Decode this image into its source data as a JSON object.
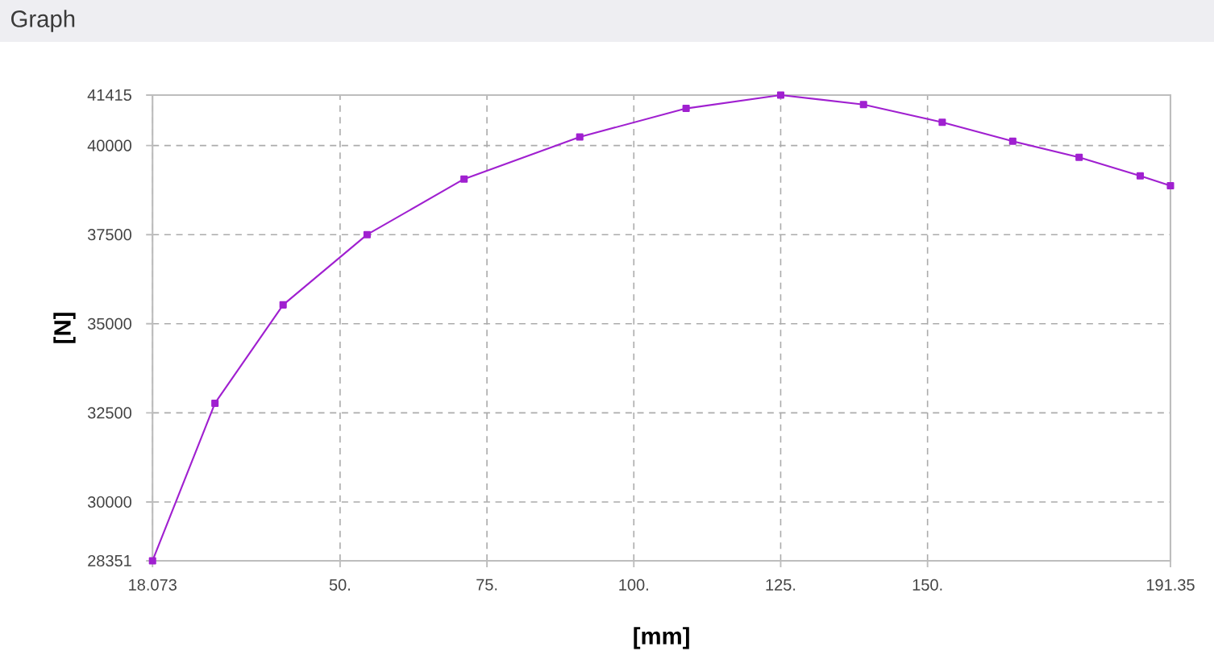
{
  "chart_data": {
    "type": "line",
    "title": "Graph",
    "xlabel": "[mm]",
    "ylabel": "[N]",
    "x": [
      18.073,
      28.7,
      40.3,
      54.6,
      71.1,
      90.8,
      108.9,
      125,
      139.1,
      152.5,
      164.5,
      175.8,
      186.2,
      191.35
    ],
    "values": [
      28351,
      32770,
      35530,
      37500,
      39060,
      40240,
      41040,
      41415,
      41150,
      40650,
      40120,
      39670,
      39150,
      38870
    ],
    "color": "#a020d0",
    "xlim": [
      18.073,
      191.35
    ],
    "ylim": [
      28351,
      41415
    ],
    "xticks": [
      18.073,
      {
        "value": 50,
        "label": "50."
      },
      {
        "value": 75,
        "label": "75."
      },
      {
        "value": 100,
        "label": "100."
      },
      {
        "value": 125,
        "label": "125."
      },
      {
        "value": 150,
        "label": "150."
      },
      191.35
    ],
    "yticks": [
      28351,
      30000,
      32500,
      35000,
      37500,
      40000,
      41415
    ],
    "grid": true,
    "marker": "square",
    "line_style": "solid"
  }
}
